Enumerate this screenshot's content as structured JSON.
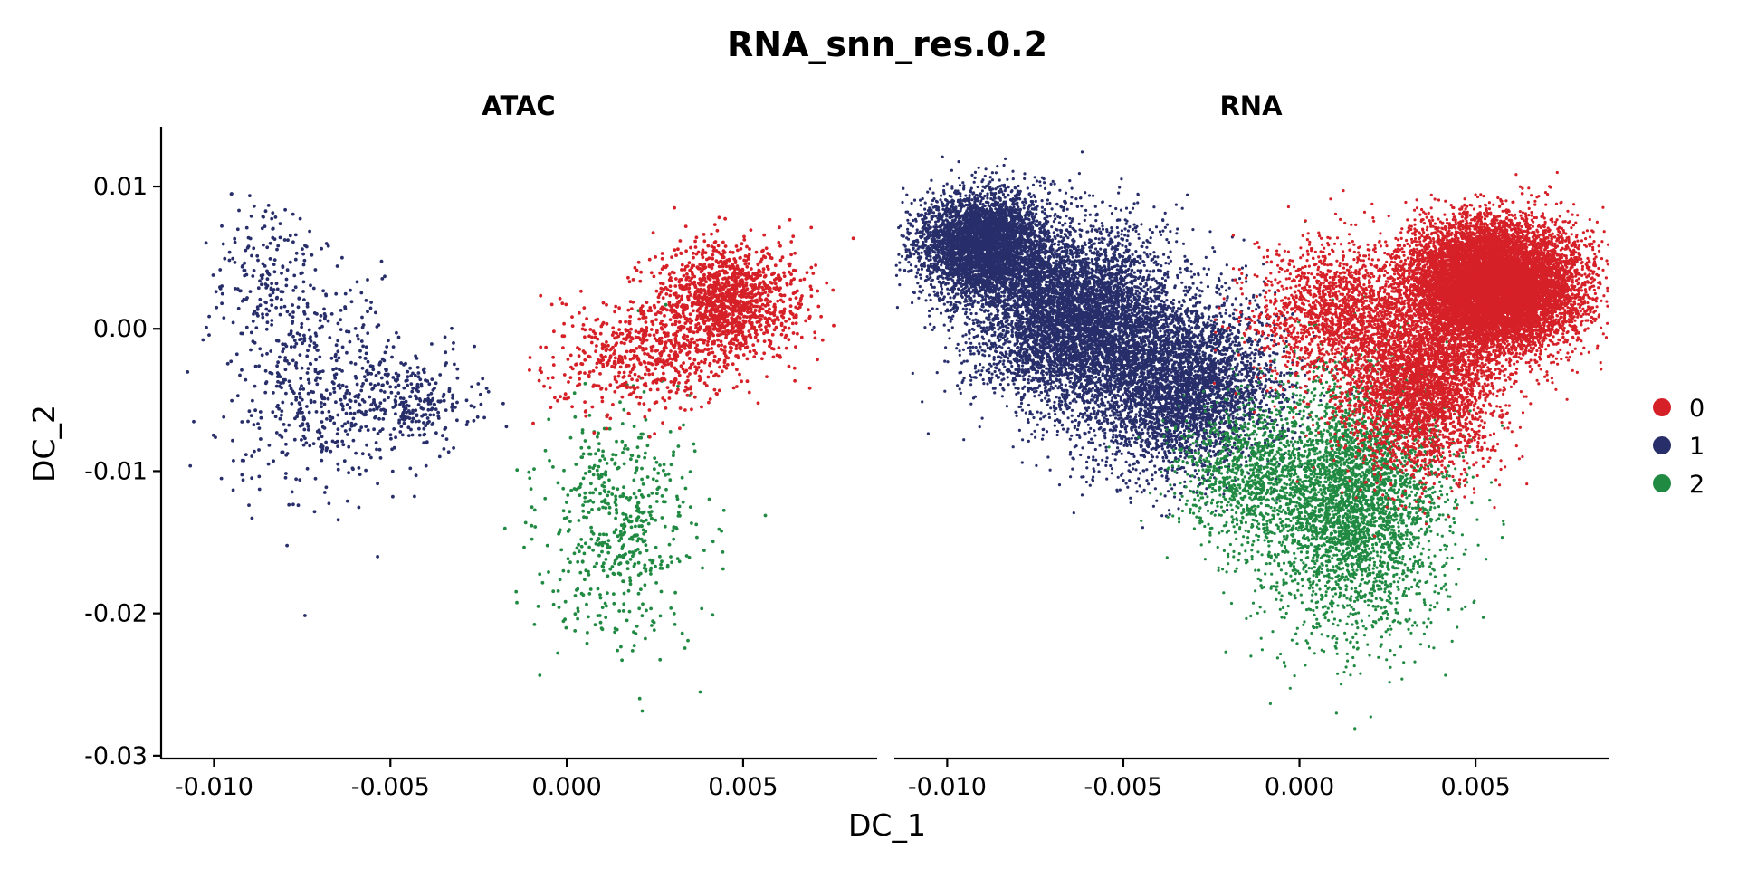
{
  "chart_data": {
    "type": "scatter",
    "title": "RNA_snn_res.0.2",
    "xlabel": "DC_1",
    "ylabel": "DC_2",
    "xlim": [
      -0.0115,
      0.0088
    ],
    "ylim": [
      -0.0302,
      0.0142
    ],
    "xticks": [
      -0.01,
      -0.005,
      0.0,
      0.005
    ],
    "xtick_labels": [
      "-0.010",
      "-0.005",
      "0.000",
      "0.005"
    ],
    "yticks": [
      0.01,
      0.0,
      -0.01,
      -0.02,
      -0.03
    ],
    "ytick_labels": [
      "0.01",
      "0.00",
      "-0.01",
      "-0.02",
      "-0.03"
    ],
    "grid": false,
    "legend_position": "right",
    "legend": [
      {
        "label": "0",
        "color": "#D62028"
      },
      {
        "label": "1",
        "color": "#272E6A"
      },
      {
        "label": "2",
        "color": "#208A42"
      }
    ],
    "facets": [
      {
        "label": "ATAC",
        "clusters": [
          {
            "label": "0",
            "count": 1900,
            "centers": [
              {
                "x": 0.0045,
                "y": 0.002,
                "sx": 0.001,
                "sy": 0.002,
                "w": 0.7
              },
              {
                "x": 0.002,
                "y": -0.002,
                "sx": 0.0012,
                "sy": 0.002,
                "w": 0.3
              }
            ]
          },
          {
            "label": "1",
            "count": 950,
            "centers": [
              {
                "x": -0.007,
                "y": -0.004,
                "sx": 0.0012,
                "sy": 0.004,
                "w": 0.5
              },
              {
                "x": -0.0045,
                "y": -0.005,
                "sx": 0.0009,
                "sy": 0.0018,
                "w": 0.3
              },
              {
                "x": -0.0085,
                "y": 0.003,
                "sx": 0.0007,
                "sy": 0.003,
                "w": 0.2
              }
            ]
          },
          {
            "label": "2",
            "count": 550,
            "centers": [
              {
                "x": 0.0015,
                "y": -0.014,
                "sx": 0.0011,
                "sy": 0.004,
                "w": 1.0
              }
            ]
          }
        ]
      },
      {
        "label": "RNA",
        "clusters": [
          {
            "label": "0",
            "count": 16000,
            "centers": [
              {
                "x": 0.0055,
                "y": 0.003,
                "sx": 0.0012,
                "sy": 0.0022,
                "w": 0.7
              },
              {
                "x": 0.0035,
                "y": -0.004,
                "sx": 0.0011,
                "sy": 0.003,
                "w": 0.2
              },
              {
                "x": 0.001,
                "y": 0.001,
                "sx": 0.0012,
                "sy": 0.0025,
                "w": 0.1
              }
            ]
          },
          {
            "label": "1",
            "count": 14000,
            "centers": [
              {
                "x": -0.009,
                "y": 0.006,
                "sx": 0.0009,
                "sy": 0.0018,
                "w": 0.3
              },
              {
                "x": -0.0065,
                "y": 0.001,
                "sx": 0.0014,
                "sy": 0.003,
                "w": 0.4
              },
              {
                "x": -0.0035,
                "y": -0.004,
                "sx": 0.0014,
                "sy": 0.003,
                "w": 0.3
              }
            ]
          },
          {
            "label": "2",
            "count": 4500,
            "centers": [
              {
                "x": 0.0015,
                "y": -0.012,
                "sx": 0.0013,
                "sy": 0.0045,
                "w": 0.8
              },
              {
                "x": -0.0015,
                "y": -0.01,
                "sx": 0.001,
                "sy": 0.0025,
                "w": 0.2
              }
            ]
          }
        ]
      }
    ]
  }
}
